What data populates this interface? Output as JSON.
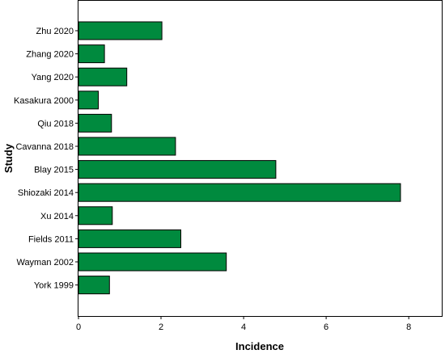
{
  "chart_data": {
    "type": "bar",
    "orientation": "horizontal",
    "xlabel": "Incidence",
    "ylabel": "Study",
    "xlim": [
      0,
      8.8
    ],
    "xticks": [
      0,
      2,
      4,
      6,
      8
    ],
    "categories": [
      "Zhu 2020",
      "Zhang 2020",
      "Yang 2020",
      "Kasakura 2000",
      "Qiu 2018",
      "Cavanna 2018",
      "Blay 2015",
      "Shiozaki 2014",
      "Xu 2014",
      "Fields 2011",
      "Wayman 2002",
      "York 1999"
    ],
    "values": [
      2.02,
      0.63,
      1.17,
      0.48,
      0.8,
      2.35,
      4.78,
      7.8,
      0.82,
      2.48,
      3.58,
      0.75
    ],
    "bar_color": "#008a3e",
    "grid": false,
    "legend": "none"
  }
}
